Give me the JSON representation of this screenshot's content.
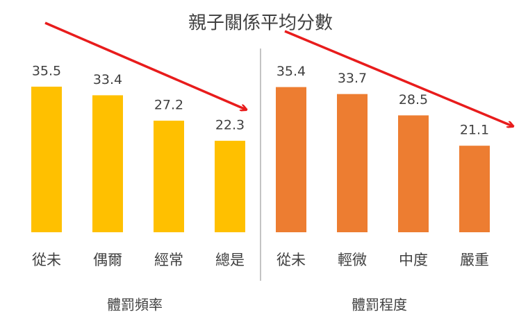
{
  "title": "親子關係平均分數",
  "chart_data": [
    {
      "type": "bar",
      "xlabel": "體罰頻率",
      "categories": [
        "從未",
        "偶爾",
        "經常",
        "總是"
      ],
      "values": [
        35.5,
        33.4,
        27.2,
        22.3
      ],
      "color": "#ffc000"
    },
    {
      "type": "bar",
      "xlabel": "體罰程度",
      "categories": [
        "從未",
        "輕微",
        "中度",
        "嚴重"
      ],
      "values": [
        35.4,
        33.7,
        28.5,
        21.1
      ],
      "color": "#ed7d31"
    }
  ]
}
